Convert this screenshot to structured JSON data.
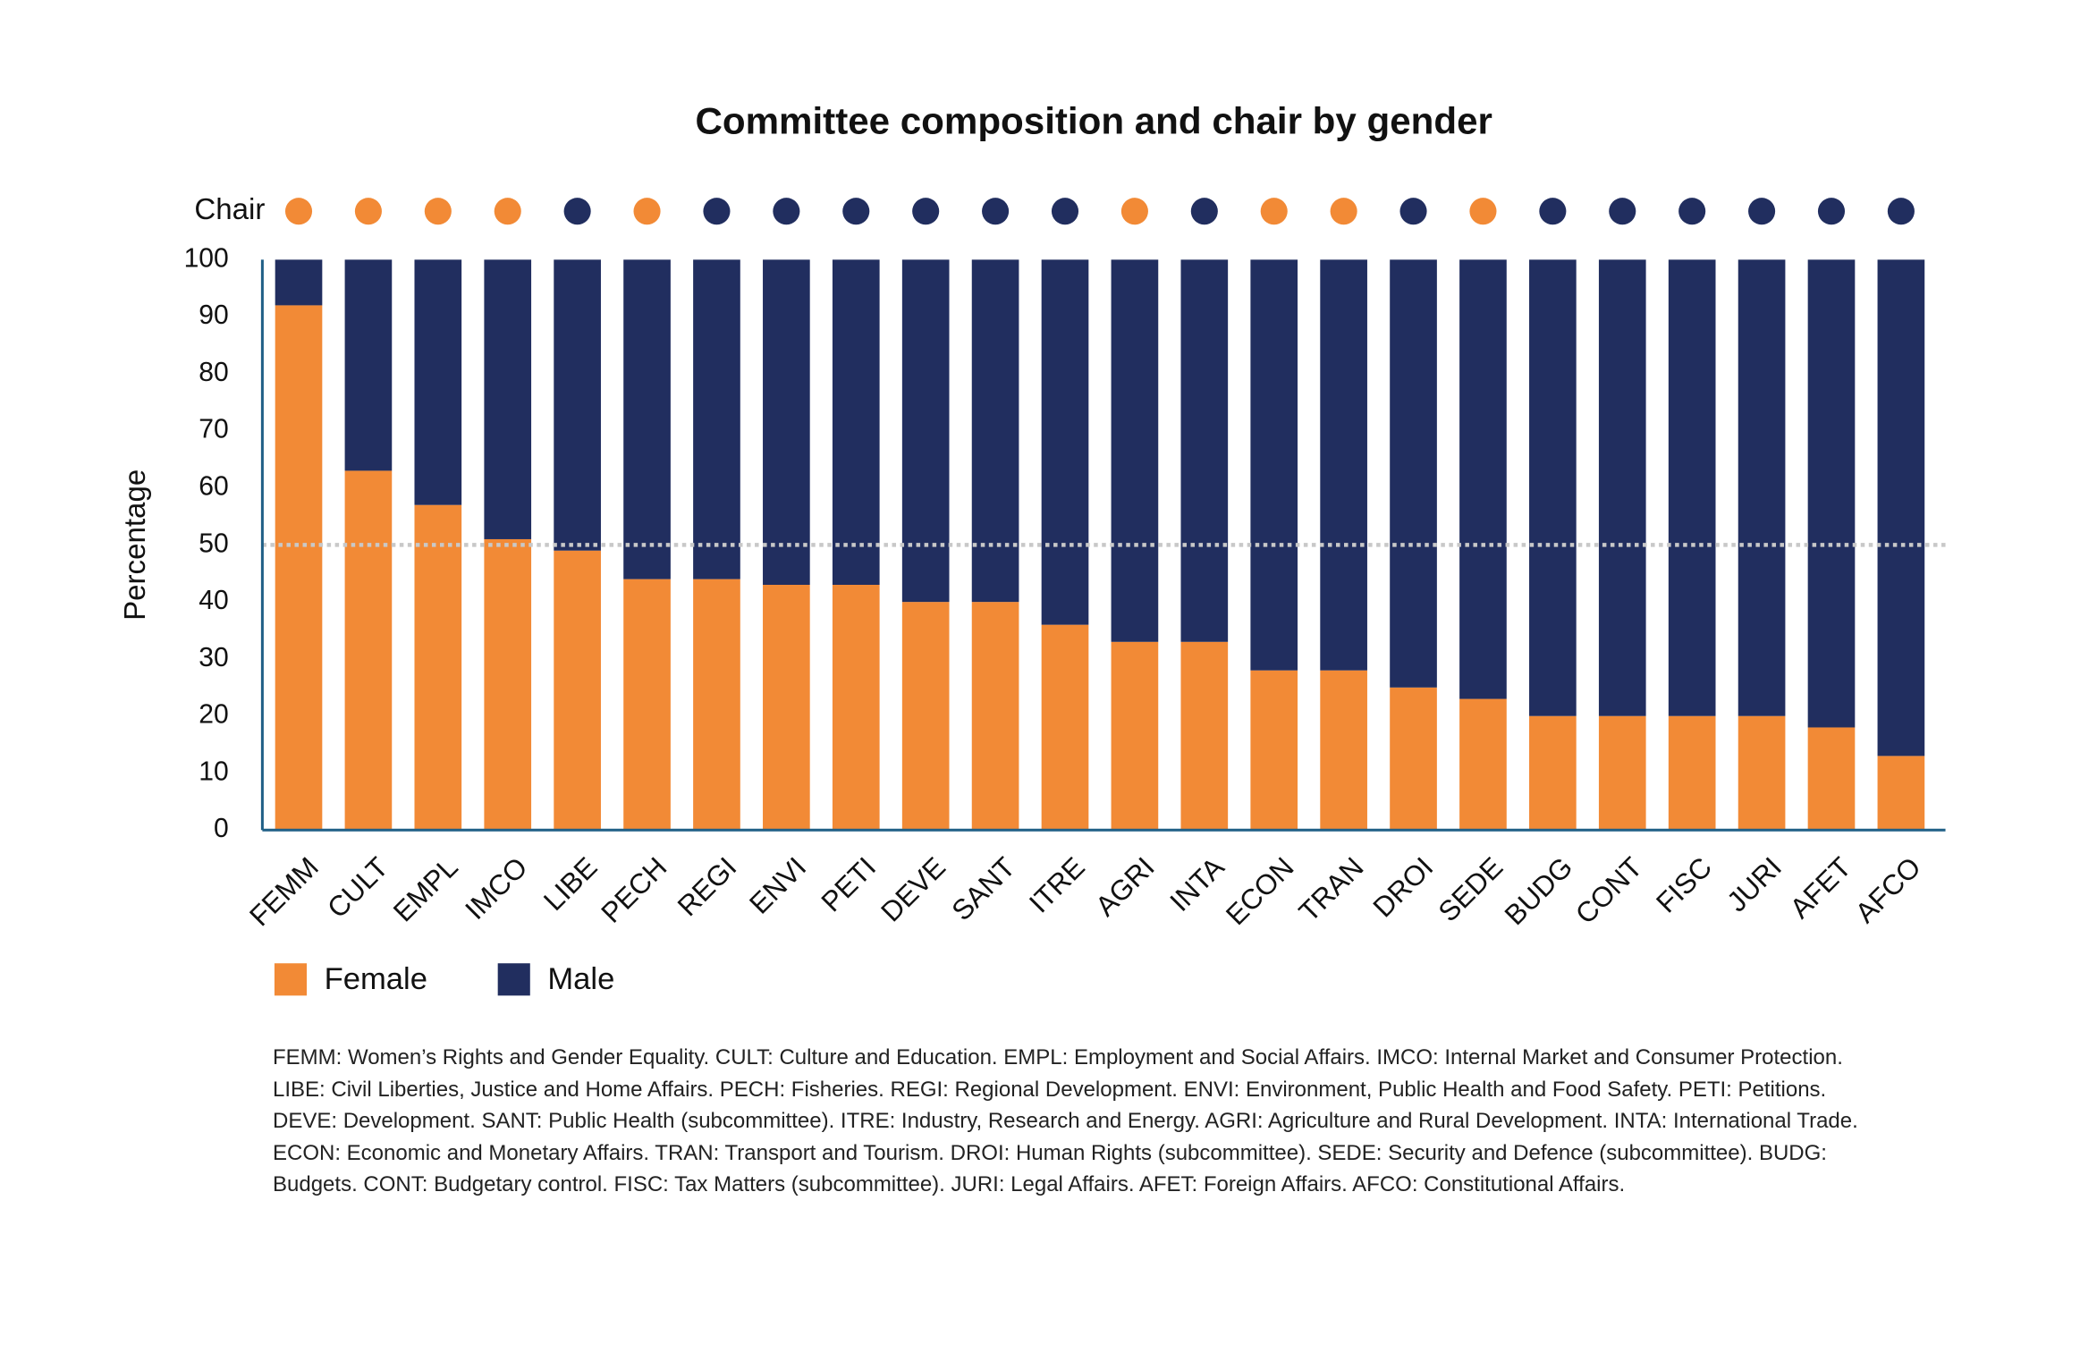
{
  "chart_data": {
    "type": "stacked_bar",
    "title": "Committee composition and chair by gender",
    "y_label": "Percentage",
    "categories": [
      "FEMM",
      "CULT",
      "EMPL",
      "IMCO",
      "LIBE",
      "PECH",
      "REGI",
      "ENVI",
      "PETI",
      "DEVE",
      "SANT",
      "ITRE",
      "AGRI",
      "INTA",
      "ECON",
      "TRAN",
      "DROI",
      "SEDE",
      "BUDG",
      "CONT",
      "FISC",
      "JURI",
      "AFET",
      "AFCO"
    ],
    "series": [
      {
        "name": "Female",
        "color": "#f28a36",
        "values": [
          92,
          63,
          57,
          51,
          49,
          44,
          44,
          43,
          43,
          40,
          40,
          36,
          33,
          33,
          28,
          28,
          25,
          23,
          20,
          20,
          20,
          20,
          18,
          13
        ]
      },
      {
        "name": "Male",
        "color": "#212e5f",
        "values": [
          8,
          37,
          43,
          49,
          51,
          56,
          56,
          57,
          57,
          60,
          60,
          64,
          67,
          67,
          72,
          72,
          75,
          77,
          80,
          80,
          80,
          80,
          82,
          87
        ]
      }
    ],
    "chair": {
      "label": "Chair",
      "colors": [
        "#f28a36",
        "#f28a36",
        "#f28a36",
        "#f28a36",
        "#212e5f",
        "#f28a36",
        "#212e5f",
        "#212e5f",
        "#212e5f",
        "#212e5f",
        "#212e5f",
        "#212e5f",
        "#f28a36",
        "#212e5f",
        "#f28a36",
        "#f28a36",
        "#212e5f",
        "#f28a36",
        "#212e5f",
        "#212e5f",
        "#212e5f",
        "#212e5f",
        "#212e5f",
        "#212e5f"
      ]
    },
    "reference_line": 50,
    "ylim": [
      0,
      100
    ],
    "yticks": [
      0,
      10,
      20,
      30,
      40,
      50,
      60,
      70,
      80,
      90,
      100
    ],
    "axis_color": "#1f5f86",
    "legend": "bottom-left",
    "footnote": "FEMM: Women’s Rights and Gender Equality. CULT: Culture and Education. EMPL: Employment and Social Affairs. IMCO: Internal Market and Consumer Protection. LIBE: Civil Liberties, Justice and Home Affairs. PECH: Fisheries. REGI: Regional Development. ENVI: Environment, Public Health and Food Safety. PETI: Petitions. DEVE: Development. SANT: Public Health (subcommittee). ITRE: Industry, Research and Energy. AGRI: Agriculture and Rural Development. INTA: International Trade. ECON: Economic and Monetary Affairs. TRAN: Transport and Tourism. DROI: Human Rights (subcommittee). SEDE: Security and Defence (subcommittee). BUDG: Budgets. CONT: Budgetary control. FISC: Tax Matters (subcommittee). JURI: Legal Affairs. AFET: Foreign Affairs. AFCO: Constitutional Affairs."
  }
}
